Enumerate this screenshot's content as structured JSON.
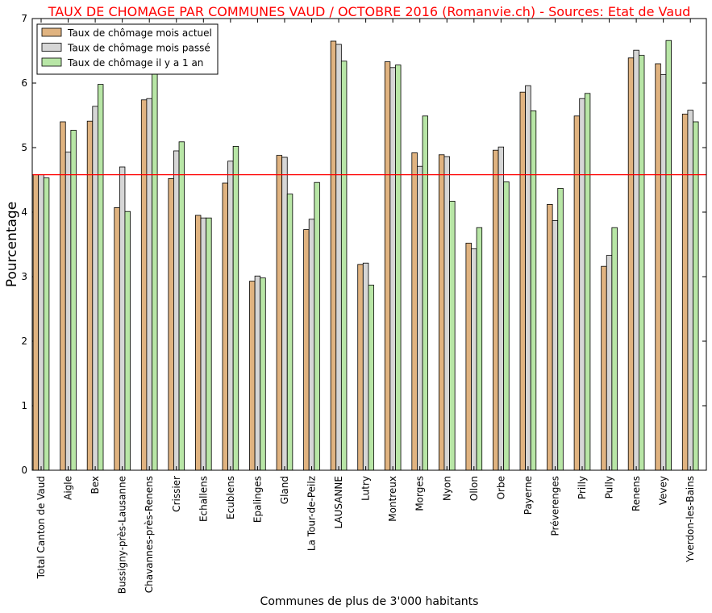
{
  "chart_data": {
    "type": "bar",
    "title": "TAUX DE CHOMAGE PAR COMMUNES VAUD / OCTOBRE 2016 (Romanvie.ch) - Sources: Etat de Vaud",
    "title_color": "#ff0000",
    "xlabel": "Communes de plus de 3'000 habitants",
    "ylabel": "Pourcentage",
    "ylim": [
      0,
      7
    ],
    "yticks": [
      "0",
      "1",
      "2",
      "3",
      "4",
      "5",
      "6",
      "7"
    ],
    "grid": false,
    "legend_position": "top-left",
    "reference_line": {
      "value": 4.58,
      "color": "#ff0000"
    },
    "categories": [
      "Total Canton de Vaud",
      "Aigle",
      "Bex",
      "Bussigny-près-Lausanne",
      "Chavannes-près-Renens",
      "Crissier",
      "Echallens",
      "Ecublens",
      "Epalinges",
      "Gland",
      "La Tour-de-Peilz",
      "LAUSANNE",
      "Lutry",
      "Montreux",
      "Morges",
      "Nyon",
      "Ollon",
      "Orbe",
      "Payerne",
      "Préverenges",
      "Prilly",
      "Pully",
      "Renens",
      "Vevey",
      "Yverdon-les-Bains"
    ],
    "series": [
      {
        "name": "Taux de chômage mois actuel",
        "color": "#e0b380",
        "values": [
          4.58,
          5.4,
          5.41,
          4.07,
          5.74,
          4.52,
          3.95,
          4.45,
          2.93,
          4.88,
          3.73,
          6.65,
          3.19,
          6.33,
          4.92,
          4.89,
          3.52,
          4.96,
          5.86,
          4.12,
          5.49,
          3.16,
          6.39,
          6.3,
          5.52
        ]
      },
      {
        "name": "Taux de chômage mois passé",
        "color": "#d6d6d6",
        "values": [
          4.58,
          4.93,
          5.64,
          4.7,
          5.76,
          4.95,
          3.91,
          4.79,
          3.01,
          4.85,
          3.89,
          6.6,
          3.21,
          6.24,
          4.71,
          4.86,
          3.43,
          5.01,
          5.96,
          3.87,
          5.76,
          3.33,
          6.51,
          6.13,
          5.58
        ]
      },
      {
        "name": "Taux de chômage il y a 1 an",
        "color": "#b8e6a6",
        "values": [
          4.53,
          5.27,
          5.98,
          4.01,
          6.18,
          5.09,
          3.91,
          5.02,
          2.98,
          4.28,
          4.46,
          6.34,
          2.87,
          6.28,
          5.49,
          4.17,
          3.76,
          4.47,
          5.57,
          4.37,
          5.84,
          3.76,
          6.43,
          6.66,
          5.4
        ]
      }
    ]
  }
}
